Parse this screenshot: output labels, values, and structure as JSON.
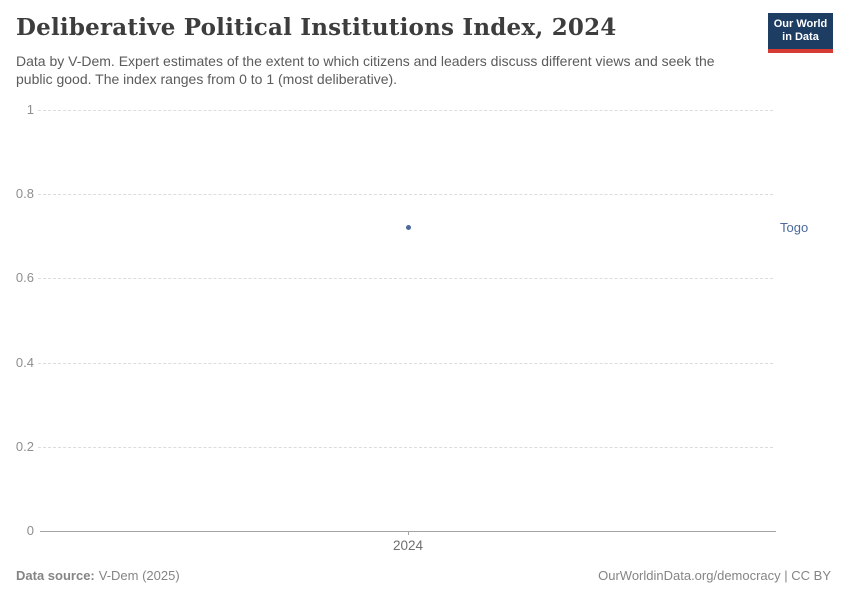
{
  "header": {
    "title": "Deliberative Political Institutions Index, 2024",
    "subtitle": "Data by V-Dem. Expert estimates of the extent to which citizens and leaders discuss different views and seek the public good. The index ranges from 0 to 1 (most deliberative).",
    "logo": {
      "line1": "Our World",
      "line2": "in Data"
    }
  },
  "chart_data": {
    "type": "scatter",
    "title": "Deliberative Political Institutions Index, 2024",
    "x": [
      2024
    ],
    "xticks": [
      "2024"
    ],
    "series": [
      {
        "name": "Togo",
        "values": [
          0.72
        ],
        "color": "#4c6a9c"
      }
    ],
    "ylim": [
      0,
      1
    ],
    "yticks": [
      0,
      0.2,
      0.4,
      0.6,
      0.8,
      1
    ],
    "xlabel": "",
    "ylabel": "",
    "grid": "horizontal-dashed",
    "legend_position": "entity-label-right-of-plot"
  },
  "footer": {
    "source_label": "Data source:",
    "source_value": "V-Dem (2025)",
    "credit": "OurWorldinData.org/democracy | CC BY"
  },
  "colors": {
    "accent_blue": "#4c6a9c",
    "logo_navy": "#1d3d63",
    "logo_red": "#d73c34",
    "gridline": "#dcdcdc",
    "axis": "#a5a5a5",
    "muted_text": "#858585"
  }
}
